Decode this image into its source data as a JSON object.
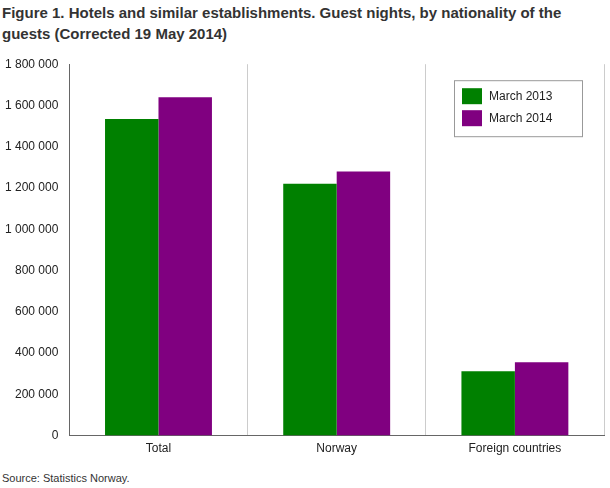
{
  "chart_data": {
    "type": "bar",
    "title": "Figure 1. Hotels and similar establishments. Guest nights, by nationality of the guests (Corrected 19 May 2014)",
    "source": "Source: Statistics Norway.",
    "categories": [
      "Total",
      "Norway",
      "Foreign countries"
    ],
    "series": [
      {
        "name": "March 2013",
        "color": "#008000",
        "values": [
          1535000,
          1220000,
          312000
        ]
      },
      {
        "name": "March 2014",
        "color": "#800080",
        "values": [
          1640000,
          1280000,
          355000
        ]
      }
    ],
    "ylim": [
      0,
      1800000
    ],
    "yticks": [
      0,
      {
        "value": 200000,
        "label": "200 000"
      },
      {
        "value": 400000,
        "label": "400 000"
      },
      {
        "value": 600000,
        "label": "600 000"
      },
      {
        "value": 800000,
        "label": "800 000"
      },
      {
        "value": 1000000,
        "label": "1 000 000"
      },
      {
        "value": 1200000,
        "label": "1 200 000"
      },
      {
        "value": 1400000,
        "label": "1 400 000"
      },
      {
        "value": 1600000,
        "label": "1 600 000"
      },
      {
        "value": 1800000,
        "label": "1 800 000"
      }
    ],
    "grid": true,
    "legend": "top-right"
  }
}
